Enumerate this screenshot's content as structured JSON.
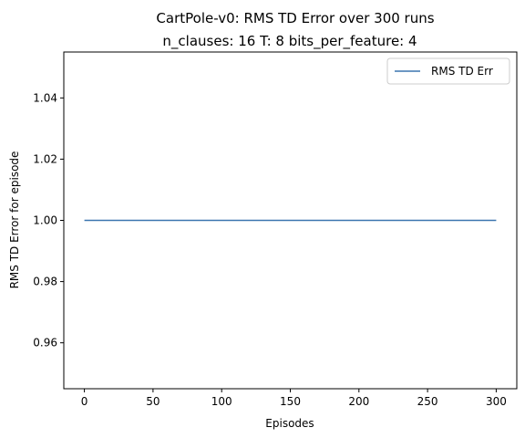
{
  "chart_data": {
    "type": "line",
    "suptitle": "CartPole-v0: RMS TD Error over 300 runs",
    "title": "n_clauses: 16 T: 8 bits_per_feature: 4",
    "xlabel": "Episodes",
    "ylabel": "RMS TD Error for episode",
    "xlim": [
      -15,
      315
    ],
    "ylim": [
      0.945,
      1.055
    ],
    "xticks": [
      0,
      50,
      100,
      150,
      200,
      250,
      300
    ],
    "yticks": [
      0.96,
      0.98,
      1.0,
      1.02,
      1.04
    ],
    "xtick_labels": [
      "0",
      "50",
      "100",
      "150",
      "200",
      "250",
      "300"
    ],
    "ytick_labels": [
      "0.96",
      "0.98",
      "1.00",
      "1.02",
      "1.04"
    ],
    "grid": false,
    "legend_position": "upper right",
    "series": [
      {
        "name": "RMS TD Err",
        "color": "#3b75af",
        "x": [
          0,
          300
        ],
        "y": [
          1.0,
          1.0
        ]
      }
    ]
  }
}
